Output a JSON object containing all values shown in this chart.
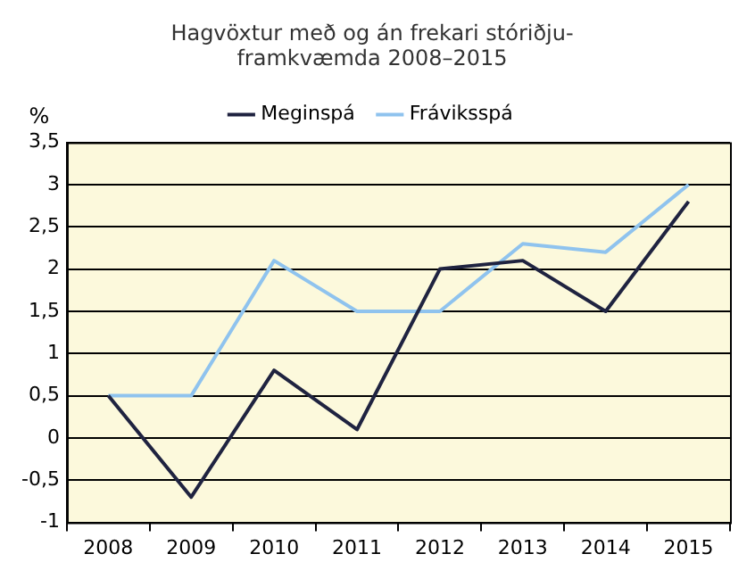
{
  "chart_data": {
    "type": "line",
    "title": "Hagvöxtur með og án frekari stóriðju-framkvæmda 2008–2015",
    "ylabel": "%",
    "categories": [
      "2008",
      "2009",
      "2010",
      "2011",
      "2012",
      "2013",
      "2014",
      "2015"
    ],
    "series": [
      {
        "name": "Meginspá",
        "color": "#1f2340",
        "values": [
          0.5,
          -0.7,
          0.8,
          0.1,
          2.0,
          2.1,
          1.5,
          2.8
        ]
      },
      {
        "name": "Fráviksspá",
        "color": "#8fc3ee",
        "values": [
          0.5,
          0.5,
          2.1,
          1.5,
          1.5,
          2.3,
          2.2,
          3.0
        ]
      }
    ],
    "ylim": [
      -1,
      3.5
    ],
    "yticks": [
      -1,
      {
        "value": -0.5,
        "label": "-0,5"
      },
      0,
      {
        "value": 0.5,
        "label": "0,5"
      },
      1,
      {
        "value": 1.5,
        "label": "1,5"
      },
      2,
      {
        "value": 2.5,
        "label": "2,5"
      },
      3,
      {
        "value": 3.5,
        "label": "3,5"
      }
    ],
    "grid": "y",
    "legend": "top",
    "marker": "none",
    "line_style": "solid"
  }
}
